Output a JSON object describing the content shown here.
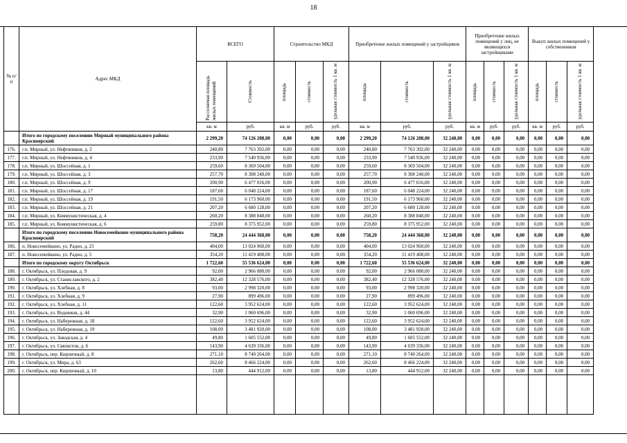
{
  "page_number": "18",
  "table": {
    "col_num": "№ п/п",
    "col_address": "Адрес МКД",
    "groups": [
      "ВСЕГО",
      "Строительство МКД",
      "Приобретение жилых помещений у застройщиков",
      "Приобретение жилых помещений у лиц, не являющихся застройщиками",
      "Выкуп жилых помещений у собственников"
    ],
    "subcols": [
      "Расселяемая площадь жилых помещений",
      "Стоимость",
      "площадь",
      "стоимость",
      "удельная стоимость 1 кв. м",
      "площадь",
      "стоимость",
      "удельная стоимость 1 кв. м",
      "площадь",
      "стоимость",
      "удельная стоимость 1 кв. м",
      "площадь",
      "стоимость",
      "удельная стоимость 1 кв. м"
    ],
    "units": [
      "кв. м",
      "руб.",
      "кв. м",
      "руб.",
      "руб.",
      "кв. м",
      "руб.",
      "руб.",
      "кв. м",
      "руб.",
      "руб.",
      "кв. м",
      "руб.",
      "руб."
    ],
    "rows": [
      {
        "type": "total",
        "num": "",
        "address": "Итого по городскому поселению Мирный муниципального района Красноярский",
        "values": [
          "2 299,20",
          "74 126 208,00",
          "0,00",
          "0,00",
          "0,00",
          "2 299,20",
          "74 126 208,00",
          "32 240,00",
          "0,00",
          "0,00",
          "0,00",
          "0,00",
          "0,00",
          "0,00"
        ]
      },
      {
        "type": "data",
        "num": "176.",
        "address": "г.п. Мирный, ул. Нефтяников, д. 2",
        "values": [
          "240,80",
          "7 763 392,00",
          "0,00",
          "0,00",
          "0,00",
          "240,80",
          "7 763 392,00",
          "32 240,00",
          "0,00",
          "0,00",
          "0,00",
          "0,00",
          "0,00",
          "0,00"
        ]
      },
      {
        "type": "data",
        "num": "177.",
        "address": "г.п. Мирный, ул. Нефтяников, д. 4",
        "values": [
          "233,90",
          "7 540 936,00",
          "0,00",
          "0,00",
          "0,00",
          "233,90",
          "7 540 936,00",
          "32 240,00",
          "0,00",
          "0,00",
          "0,00",
          "0,00",
          "0,00",
          "0,00"
        ]
      },
      {
        "type": "data",
        "num": "178.",
        "address": "г.п. Мирный, ул. Шоссейная, д. 1",
        "values": [
          "259,60",
          "8 369 504,00",
          "0,00",
          "0,00",
          "0,00",
          "259,60",
          "8 369 504,00",
          "32 240,00",
          "0,00",
          "0,00",
          "0,00",
          "0,00",
          "0,00",
          "0,00"
        ]
      },
      {
        "type": "data",
        "num": "179.",
        "address": "г.п. Мирный, ул. Шоссейная, д. 3",
        "values": [
          "257,70",
          "8 308 248,00",
          "0,00",
          "0,00",
          "0,00",
          "257,70",
          "8 308 248,00",
          "32 240,00",
          "0,00",
          "0,00",
          "0,00",
          "0,00",
          "0,00",
          "0,00"
        ]
      },
      {
        "type": "data",
        "num": "180.",
        "address": "г.п. Мирный, ул. Шоссейная, д. 9",
        "values": [
          "200,90",
          "6 477 016,00",
          "0,00",
          "0,00",
          "0,00",
          "200,90",
          "6 477 016,00",
          "32 240,00",
          "0,00",
          "0,00",
          "0,00",
          "0,00",
          "0,00",
          "0,00"
        ]
      },
      {
        "type": "data",
        "num": "181.",
        "address": "г.п. Мирный, ул. Шоссейная, д. 17",
        "values": [
          "187,60",
          "6 048 224,00",
          "0,00",
          "0,00",
          "0,00",
          "187,60",
          "6 048 224,00",
          "32 240,00",
          "0,00",
          "0,00",
          "0,00",
          "0,00",
          "0,00",
          "0,00"
        ]
      },
      {
        "type": "data",
        "num": "182.",
        "address": "г.п. Мирный, ул. Шоссейная, д. 19",
        "values": [
          "191,50",
          "6 173 960,00",
          "0,00",
          "0,00",
          "0,00",
          "191,50",
          "6 173 960,00",
          "32 240,00",
          "0,00",
          "0,00",
          "0,00",
          "0,00",
          "0,00",
          "0,00"
        ]
      },
      {
        "type": "data",
        "num": "183.",
        "address": "г.п. Мирный, ул. Шоссейная, д. 21",
        "values": [
          "207,20",
          "6 680 128,00",
          "0,00",
          "0,00",
          "0,00",
          "207,20",
          "6 680 128,00",
          "32 240,00",
          "0,00",
          "0,00",
          "0,00",
          "0,00",
          "0,00",
          "0,00"
        ]
      },
      {
        "type": "data",
        "num": "184.",
        "address": "г.п. Мирный, ул. Коммунистическая, д. 4",
        "values": [
          "260,20",
          "8 388 848,00",
          "0,00",
          "0,00",
          "0,00",
          "260,20",
          "8 388 848,00",
          "32 240,00",
          "0,00",
          "0,00",
          "0,00",
          "0,00",
          "0,00",
          "0,00"
        ]
      },
      {
        "type": "data",
        "num": "185.",
        "address": "г.п. Мирный, ул. Коммунистическая, д. 6",
        "values": [
          "259,80",
          "8 375 952,00",
          "0,00",
          "0,00",
          "0,00",
          "259,80",
          "8 375 952,00",
          "32 240,00",
          "0,00",
          "0,00",
          "0,00",
          "0,00",
          "0,00",
          "0,00"
        ]
      },
      {
        "type": "total",
        "num": "",
        "address": "Итого по городскому поселению Новосемейкино муниципального района Красноярский",
        "values": [
          "758,20",
          "24 444 368,00",
          "0,00",
          "0,00",
          "0,00",
          "758,20",
          "24 444 368,00",
          "32 240,00",
          "0,00",
          "0,00",
          "0,00",
          "0,00",
          "0,00",
          "0,00"
        ]
      },
      {
        "type": "data",
        "num": "186.",
        "address": "п. Новосемейкино, ул. Радио, д. 21",
        "values": [
          "404,00",
          "13 024 960,00",
          "0,00",
          "0,00",
          "0,00",
          "404,00",
          "13 024 960,00",
          "32 240,00",
          "0,00",
          "0,00",
          "0,00",
          "0,00",
          "0,00",
          "0,00"
        ]
      },
      {
        "type": "data",
        "num": "187.",
        "address": "п. Новосемейкино, ул. Радио, д. 5",
        "values": [
          "354,20",
          "11 419 408,00",
          "0,00",
          "0,00",
          "0,00",
          "354,20",
          "11 419 408,00",
          "32 240,00",
          "0,00",
          "0,00",
          "0,00",
          "0,00",
          "0,00",
          "0,00"
        ]
      },
      {
        "type": "total",
        "num": "",
        "address": "Итого по городскому округу Октябрьск",
        "values": [
          "1 722,60",
          "55 536 624,00",
          "0,00",
          "0,00",
          "0,00",
          "1 722,60",
          "55 536 624,00",
          "32 240,00",
          "0,00",
          "0,00",
          "0,00",
          "0,00",
          "0,00",
          "0,00"
        ]
      },
      {
        "type": "data",
        "num": "188.",
        "address": "г. Октябрьск, ул. Плодовая, д. 9",
        "values": [
          "92,00",
          "2 966 080,00",
          "0,00",
          "0,00",
          "0,00",
          "92,00",
          "2 966 080,00",
          "32 240,00",
          "0,00",
          "0,00",
          "0,00",
          "0,00",
          "0,00",
          "0,00"
        ]
      },
      {
        "type": "data",
        "num": "189.",
        "address": "г. Октябрьск, ул. Станиславского, д. 2",
        "values": [
          "382,40",
          "12 328 576,00",
          "0,00",
          "0,00",
          "0,00",
          "382,40",
          "12 328 576,00",
          "32 240,00",
          "0,00",
          "0,00",
          "0,00",
          "0,00",
          "0,00",
          "0,00"
        ]
      },
      {
        "type": "data",
        "num": "190.",
        "address": "г. Октябрьск, ул. Хлебная, д. 8",
        "values": [
          "93,00",
          "2 998 320,00",
          "0,00",
          "0,00",
          "0,00",
          "93,00",
          "2 998 320,00",
          "32 240,00",
          "0,00",
          "0,00",
          "0,00",
          "0,00",
          "0,00",
          "0,00"
        ]
      },
      {
        "type": "data",
        "num": "191.",
        "address": "г. Октябрьск, ул. Хлебная, д. 9",
        "values": [
          "27,90",
          "899 496,00",
          "0,00",
          "0,00",
          "0,00",
          "27,90",
          "899 496,00",
          "32 240,00",
          "0,00",
          "0,00",
          "0,00",
          "0,00",
          "0,00",
          "0,00"
        ]
      },
      {
        "type": "data",
        "num": "192.",
        "address": "г. Октябрьск, ул. Хлебная, д. 11",
        "values": [
          "122,60",
          "3 952 624,00",
          "0,00",
          "0,00",
          "0,00",
          "122,60",
          "3 952 624,00",
          "32 240,00",
          "0,00",
          "0,00",
          "0,00",
          "0,00",
          "0,00",
          "0,00"
        ]
      },
      {
        "type": "data",
        "num": "193.",
        "address": "г. Октябрьск, ул. Водников, д. 44",
        "values": [
          "32,90",
          "1 060 696,00",
          "0,00",
          "0,00",
          "0,00",
          "32,90",
          "1 060 696,00",
          "32 240,00",
          "0,00",
          "0,00",
          "0,00",
          "0,00",
          "0,00",
          "0,00"
        ]
      },
      {
        "type": "data",
        "num": "194.",
        "address": "г. Октябрьск, ул. Набережная, д. 18",
        "values": [
          "122,60",
          "3 952 624,00",
          "0,00",
          "0,00",
          "0,00",
          "122,60",
          "3 952 624,00",
          "32 240,00",
          "0,00",
          "0,00",
          "0,00",
          "0,00",
          "0,00",
          "0,00"
        ]
      },
      {
        "type": "data",
        "num": "195.",
        "address": "г. Октябрьск, ул. Набережная, д. 19",
        "values": [
          "108,00",
          "3 481 920,00",
          "0,00",
          "0,00",
          "0,00",
          "108,00",
          "3 481 920,00",
          "32 240,00",
          "0,00",
          "0,00",
          "0,00",
          "0,00",
          "0,00",
          "0,00"
        ]
      },
      {
        "type": "data",
        "num": "196.",
        "address": "г. Октябрьск, ул. Заводская, д. 4",
        "values": [
          "49,80",
          "1 605 552,00",
          "0,00",
          "0,00",
          "0,00",
          "49,80",
          "1 605 552,00",
          "32 240,00",
          "0,00",
          "0,00",
          "0,00",
          "0,00",
          "0,00",
          "0,00"
        ]
      },
      {
        "type": "data",
        "num": "197.",
        "address": "г. Октябрьск, ул. Связистов, д. 6",
        "values": [
          "143,90",
          "4 639 336,00",
          "0,00",
          "0,00",
          "0,00",
          "143,90",
          "4 639 336,00",
          "32 240,00",
          "0,00",
          "0,00",
          "0,00",
          "0,00",
          "0,00",
          "0,00"
        ]
      },
      {
        "type": "data",
        "num": "198.",
        "address": "г. Октябрьск, пер. Кирпичный, д. 8",
        "values": [
          "271,10",
          "8 740 264,00",
          "0,00",
          "0,00",
          "0,00",
          "271,10",
          "8 740 264,00",
          "32 240,00",
          "0,00",
          "0,00",
          "0,00",
          "0,00",
          "0,00",
          "0,00"
        ]
      },
      {
        "type": "data",
        "num": "199.",
        "address": "г. Октябрьск, ул. Мира, д. 63",
        "values": [
          "262,60",
          "8 466 224,00",
          "0,00",
          "0,00",
          "0,00",
          "262,60",
          "8 466 224,00",
          "32 240,00",
          "0,00",
          "0,00",
          "0,00",
          "0,00",
          "0,00",
          "0,00"
        ]
      },
      {
        "type": "data",
        "num": "200.",
        "address": "г. Октябрьск, пер. Кирпичный, д. 10",
        "values": [
          "13,80",
          "444 912,00",
          "0,00",
          "0,00",
          "0,00",
          "13,80",
          "444 912,00",
          "32 240,00",
          "0,00",
          "0,00",
          "0,00",
          "0,00",
          "0,00",
          "0,00"
        ]
      }
    ]
  }
}
